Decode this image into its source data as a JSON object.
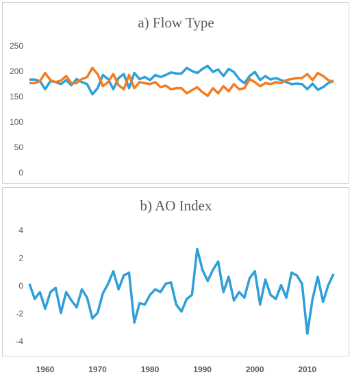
{
  "chart_data": [
    {
      "type": "line",
      "title": "a) Flow Type",
      "x": [
        1957,
        1958,
        1959,
        1960,
        1961,
        1962,
        1963,
        1964,
        1965,
        1966,
        1967,
        1968,
        1969,
        1970,
        1971,
        1972,
        1973,
        1974,
        1975,
        1976,
        1977,
        1978,
        1979,
        1980,
        1981,
        1982,
        1983,
        1984,
        1985,
        1986,
        1987,
        1988,
        1989,
        1990,
        1991,
        1992,
        1993,
        1994,
        1995,
        1996,
        1997,
        1998,
        1999,
        2000,
        2001,
        2002,
        2003,
        2004,
        2005,
        2006,
        2007,
        2008,
        2009,
        2010,
        2011,
        2012,
        2013,
        2014,
        2015
      ],
      "xlim": [
        1957,
        2015
      ],
      "series": [
        {
          "color": "#2e9fd8",
          "values": [
            185,
            185,
            182,
            166,
            182,
            180,
            176,
            184,
            174,
            186,
            180,
            176,
            156,
            168,
            194,
            186,
            166,
            188,
            196,
            168,
            198,
            186,
            190,
            184,
            194,
            190,
            194,
            199,
            197,
            197,
            208,
            202,
            198,
            206,
            212,
            200,
            205,
            192,
            206,
            200,
            186,
            178,
            192,
            200,
            184,
            192,
            185,
            188,
            184,
            180,
            176,
            177,
            176,
            166,
            177,
            165,
            170,
            178,
            183
          ]
        },
        {
          "color": "#f47c20",
          "values": [
            178,
            178,
            182,
            198,
            184,
            180,
            183,
            192,
            178,
            178,
            186,
            190,
            208,
            196,
            172,
            180,
            196,
            174,
            166,
            194,
            168,
            180,
            178,
            176,
            180,
            170,
            173,
            166,
            168,
            168,
            158,
            164,
            170,
            160,
            153,
            168,
            158,
            172,
            162,
            176,
            166,
            168,
            186,
            180,
            172,
            178,
            176,
            180,
            178,
            184,
            186,
            188,
            188,
            196,
            184,
            198,
            192,
            184,
            180
          ]
        }
      ],
      "ylim": [
        0,
        250
      ],
      "yticks": [
        0,
        50,
        100,
        150,
        200,
        250
      ]
    },
    {
      "type": "line",
      "title": "b) AO Index",
      "x": [
        1957,
        1958,
        1959,
        1960,
        1961,
        1962,
        1963,
        1964,
        1965,
        1966,
        1967,
        1968,
        1969,
        1970,
        1971,
        1972,
        1973,
        1974,
        1975,
        1976,
        1977,
        1978,
        1979,
        1980,
        1981,
        1982,
        1983,
        1984,
        1985,
        1986,
        1987,
        1988,
        1989,
        1990,
        1991,
        1992,
        1993,
        1994,
        1995,
        1996,
        1997,
        1998,
        1999,
        2000,
        2001,
        2002,
        2003,
        2004,
        2005,
        2006,
        2007,
        2008,
        2009,
        2010,
        2011,
        2012,
        2013,
        2014,
        2015
      ],
      "xlim": [
        1957,
        2015
      ],
      "xticks": [
        1960,
        1970,
        1980,
        1990,
        2000,
        2010
      ],
      "series": [
        {
          "color": "#2e9fd8",
          "values": [
            0.2,
            -0.9,
            -0.4,
            -1.6,
            -0.4,
            -0.1,
            -1.9,
            -0.4,
            -1.0,
            -1.5,
            -0.2,
            -0.8,
            -2.3,
            -1.9,
            -0.5,
            0.2,
            1.1,
            -0.2,
            0.8,
            1.0,
            -2.6,
            -1.2,
            -1.3,
            -0.6,
            -0.2,
            -0.4,
            0.2,
            0.3,
            -1.3,
            -1.8,
            -0.9,
            -0.6,
            2.7,
            1.2,
            0.4,
            1.2,
            1.8,
            -0.4,
            0.7,
            -1.0,
            -0.4,
            -0.8,
            0.6,
            1.1,
            -1.3,
            0.5,
            -0.6,
            -0.9,
            0.1,
            -0.8,
            1.0,
            0.8,
            0.2,
            -3.4,
            -0.9,
            0.7,
            -1.1,
            0.1,
            0.9
          ]
        }
      ],
      "ylim": [
        -4,
        4
      ],
      "yticks": [
        -4,
        -2,
        0,
        2,
        4
      ]
    }
  ]
}
